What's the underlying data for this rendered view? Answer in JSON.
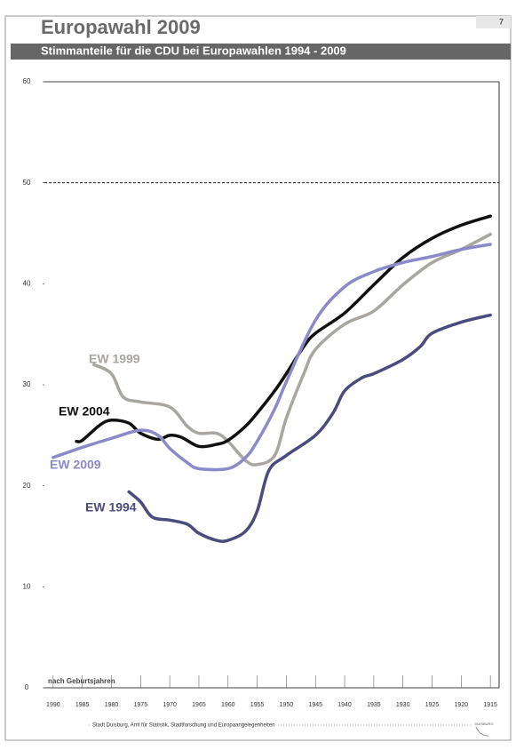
{
  "page_number": "7",
  "footer": "Stadt Duisburg, Amt für Statistik, Stadtforschung und Europaangelegenheiten",
  "logo": "DUISBURG",
  "chart_data": {
    "type": "line",
    "title": "Europawahl 2009",
    "subtitle": "Stimmanteile für die CDU bei Europawahlen 1994 - 2009",
    "x_label": "nach Geburtsjahren",
    "xlim": [
      1991.5,
      1913.5
    ],
    "xticks": [
      1990,
      1985,
      1980,
      1975,
      1970,
      1965,
      1960,
      1955,
      1950,
      1945,
      1940,
      1935,
      1930,
      1925,
      1920,
      1915
    ],
    "ylim": [
      0,
      60
    ],
    "yticks": [
      0,
      10,
      20,
      30,
      40,
      50,
      60
    ],
    "reference_line": 50,
    "series": [
      {
        "name": "EW 1999",
        "color": "#a9a5a1",
        "x": [
          1983,
          1980,
          1978,
          1975,
          1970,
          1967,
          1965,
          1962,
          1960,
          1957,
          1955,
          1952,
          1950,
          1947,
          1945,
          1940,
          1935,
          1930,
          1925,
          1920,
          1915
        ],
        "values": [
          32.0,
          31.1,
          28.8,
          28.3,
          27.8,
          25.9,
          25.2,
          25.2,
          24.4,
          22.5,
          22.1,
          23.0,
          26.7,
          31.1,
          33.5,
          36.0,
          37.3,
          39.9,
          42.1,
          43.4,
          44.9
        ]
      },
      {
        "name": "EW 2004",
        "color": "#111111",
        "x": [
          1986,
          1985,
          1982,
          1980,
          1977,
          1975,
          1972,
          1970,
          1968,
          1965,
          1962,
          1960,
          1957,
          1955,
          1952,
          1950,
          1947,
          1945,
          1940,
          1935,
          1930,
          1925,
          1920,
          1915
        ],
        "values": [
          24.4,
          24.5,
          26.0,
          26.5,
          26.2,
          25.2,
          24.6,
          25.0,
          24.8,
          23.9,
          24.1,
          24.5,
          25.9,
          27.2,
          29.4,
          31.1,
          33.8,
          35.1,
          37.1,
          39.9,
          42.6,
          44.5,
          45.8,
          46.7
        ]
      },
      {
        "name": "EW 2009",
        "color": "#8c89c9",
        "x": [
          1990,
          1985,
          1980,
          1975,
          1972,
          1970,
          1967,
          1965,
          1960,
          1957,
          1955,
          1952,
          1950,
          1945,
          1940,
          1935,
          1930,
          1925,
          1920,
          1915
        ],
        "values": [
          22.8,
          23.8,
          24.7,
          25.5,
          25.0,
          23.7,
          22.3,
          21.7,
          21.7,
          22.8,
          24.4,
          27.6,
          30.3,
          36.4,
          39.7,
          41.2,
          42.1,
          42.7,
          43.4,
          43.9
        ]
      },
      {
        "name": "EW 1994",
        "color": "#4b4b7d",
        "x": [
          1977,
          1975,
          1973,
          1970,
          1967,
          1965,
          1962,
          1960,
          1957,
          1955,
          1953,
          1950,
          1945,
          1942,
          1940,
          1937,
          1935,
          1930,
          1927,
          1925,
          1920,
          1915
        ],
        "values": [
          19.4,
          18.4,
          16.9,
          16.6,
          16.2,
          15.3,
          14.6,
          14.6,
          15.5,
          17.5,
          21.5,
          23.0,
          25.0,
          27.2,
          29.4,
          30.7,
          31.1,
          32.5,
          33.8,
          35.1,
          36.2,
          36.9
        ]
      }
    ]
  }
}
